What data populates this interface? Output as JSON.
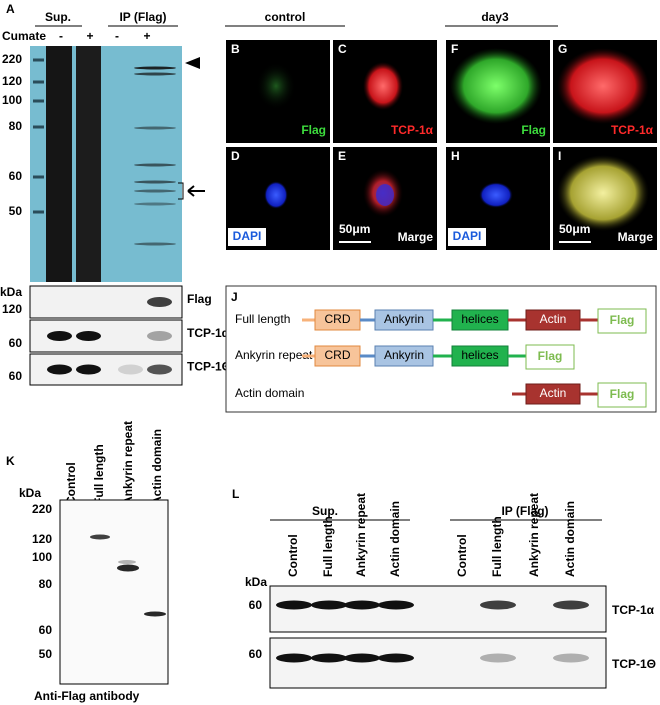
{
  "panel_a": {
    "letter": "A",
    "groups": [
      "Sup.",
      "IP (Flag)"
    ],
    "cumate_label": "Cumate",
    "cumate": [
      "-",
      "+",
      "-",
      "+"
    ],
    "kda_label": "kDa",
    "markers": [
      "220",
      "120",
      "100",
      "80",
      "60",
      "50"
    ],
    "blot_kda_label": "kDa",
    "blots": [
      {
        "name": "Flag",
        "marker": "120"
      },
      {
        "name": "TCP-1α",
        "marker": "60"
      },
      {
        "name": "TCP-1Θ",
        "marker": "60"
      }
    ]
  },
  "microscopy": {
    "groups": [
      "control",
      "day3"
    ],
    "panels": [
      {
        "letter": "B",
        "label": "Flag"
      },
      {
        "letter": "C",
        "label": "TCP-1α"
      },
      {
        "letter": "D",
        "label": "DAPI"
      },
      {
        "letter": "E",
        "scale": "50μm",
        "label": "Marge"
      },
      {
        "letter": "F",
        "label": "Flag"
      },
      {
        "letter": "G",
        "label": "TCP-1α"
      },
      {
        "letter": "H",
        "label": "DAPI"
      },
      {
        "letter": "I",
        "scale": "50μm",
        "label": "Marge"
      }
    ]
  },
  "panel_j": {
    "letter": "J",
    "constructs": [
      {
        "name": "Full length",
        "domains": [
          "CRD",
          "Ankyrin",
          "helices",
          "Actin"
        ],
        "tag": "Flag"
      },
      {
        "name": "Ankyrin repeat",
        "domains": [
          "CRD",
          "Ankyrin",
          "helices"
        ],
        "tag": "Flag"
      },
      {
        "name": "Actin domain",
        "domains": [
          "Actin"
        ],
        "tag": "Flag"
      }
    ]
  },
  "panel_k": {
    "letter": "K",
    "lanes": [
      "Control",
      "Full length",
      "Ankyrin repeat",
      "Actin domain"
    ],
    "kda_label": "kDa",
    "markers": [
      "220",
      "120",
      "100",
      "80",
      "60",
      "50"
    ],
    "caption": "Anti-Flag antibody"
  },
  "panel_l": {
    "letter": "L",
    "groups": [
      "Sup.",
      "IP (Flag)"
    ],
    "lanes": [
      "Control",
      "Full length",
      "Ankyrin repeat",
      "Actin domain",
      "Control",
      "Full length",
      "Ankyrin repeat",
      "Actin domain"
    ],
    "kda_label": "kDa",
    "blots": [
      {
        "name": "TCP-1α",
        "marker": "60"
      },
      {
        "name": "TCP-1Θ",
        "marker": "60"
      }
    ]
  }
}
